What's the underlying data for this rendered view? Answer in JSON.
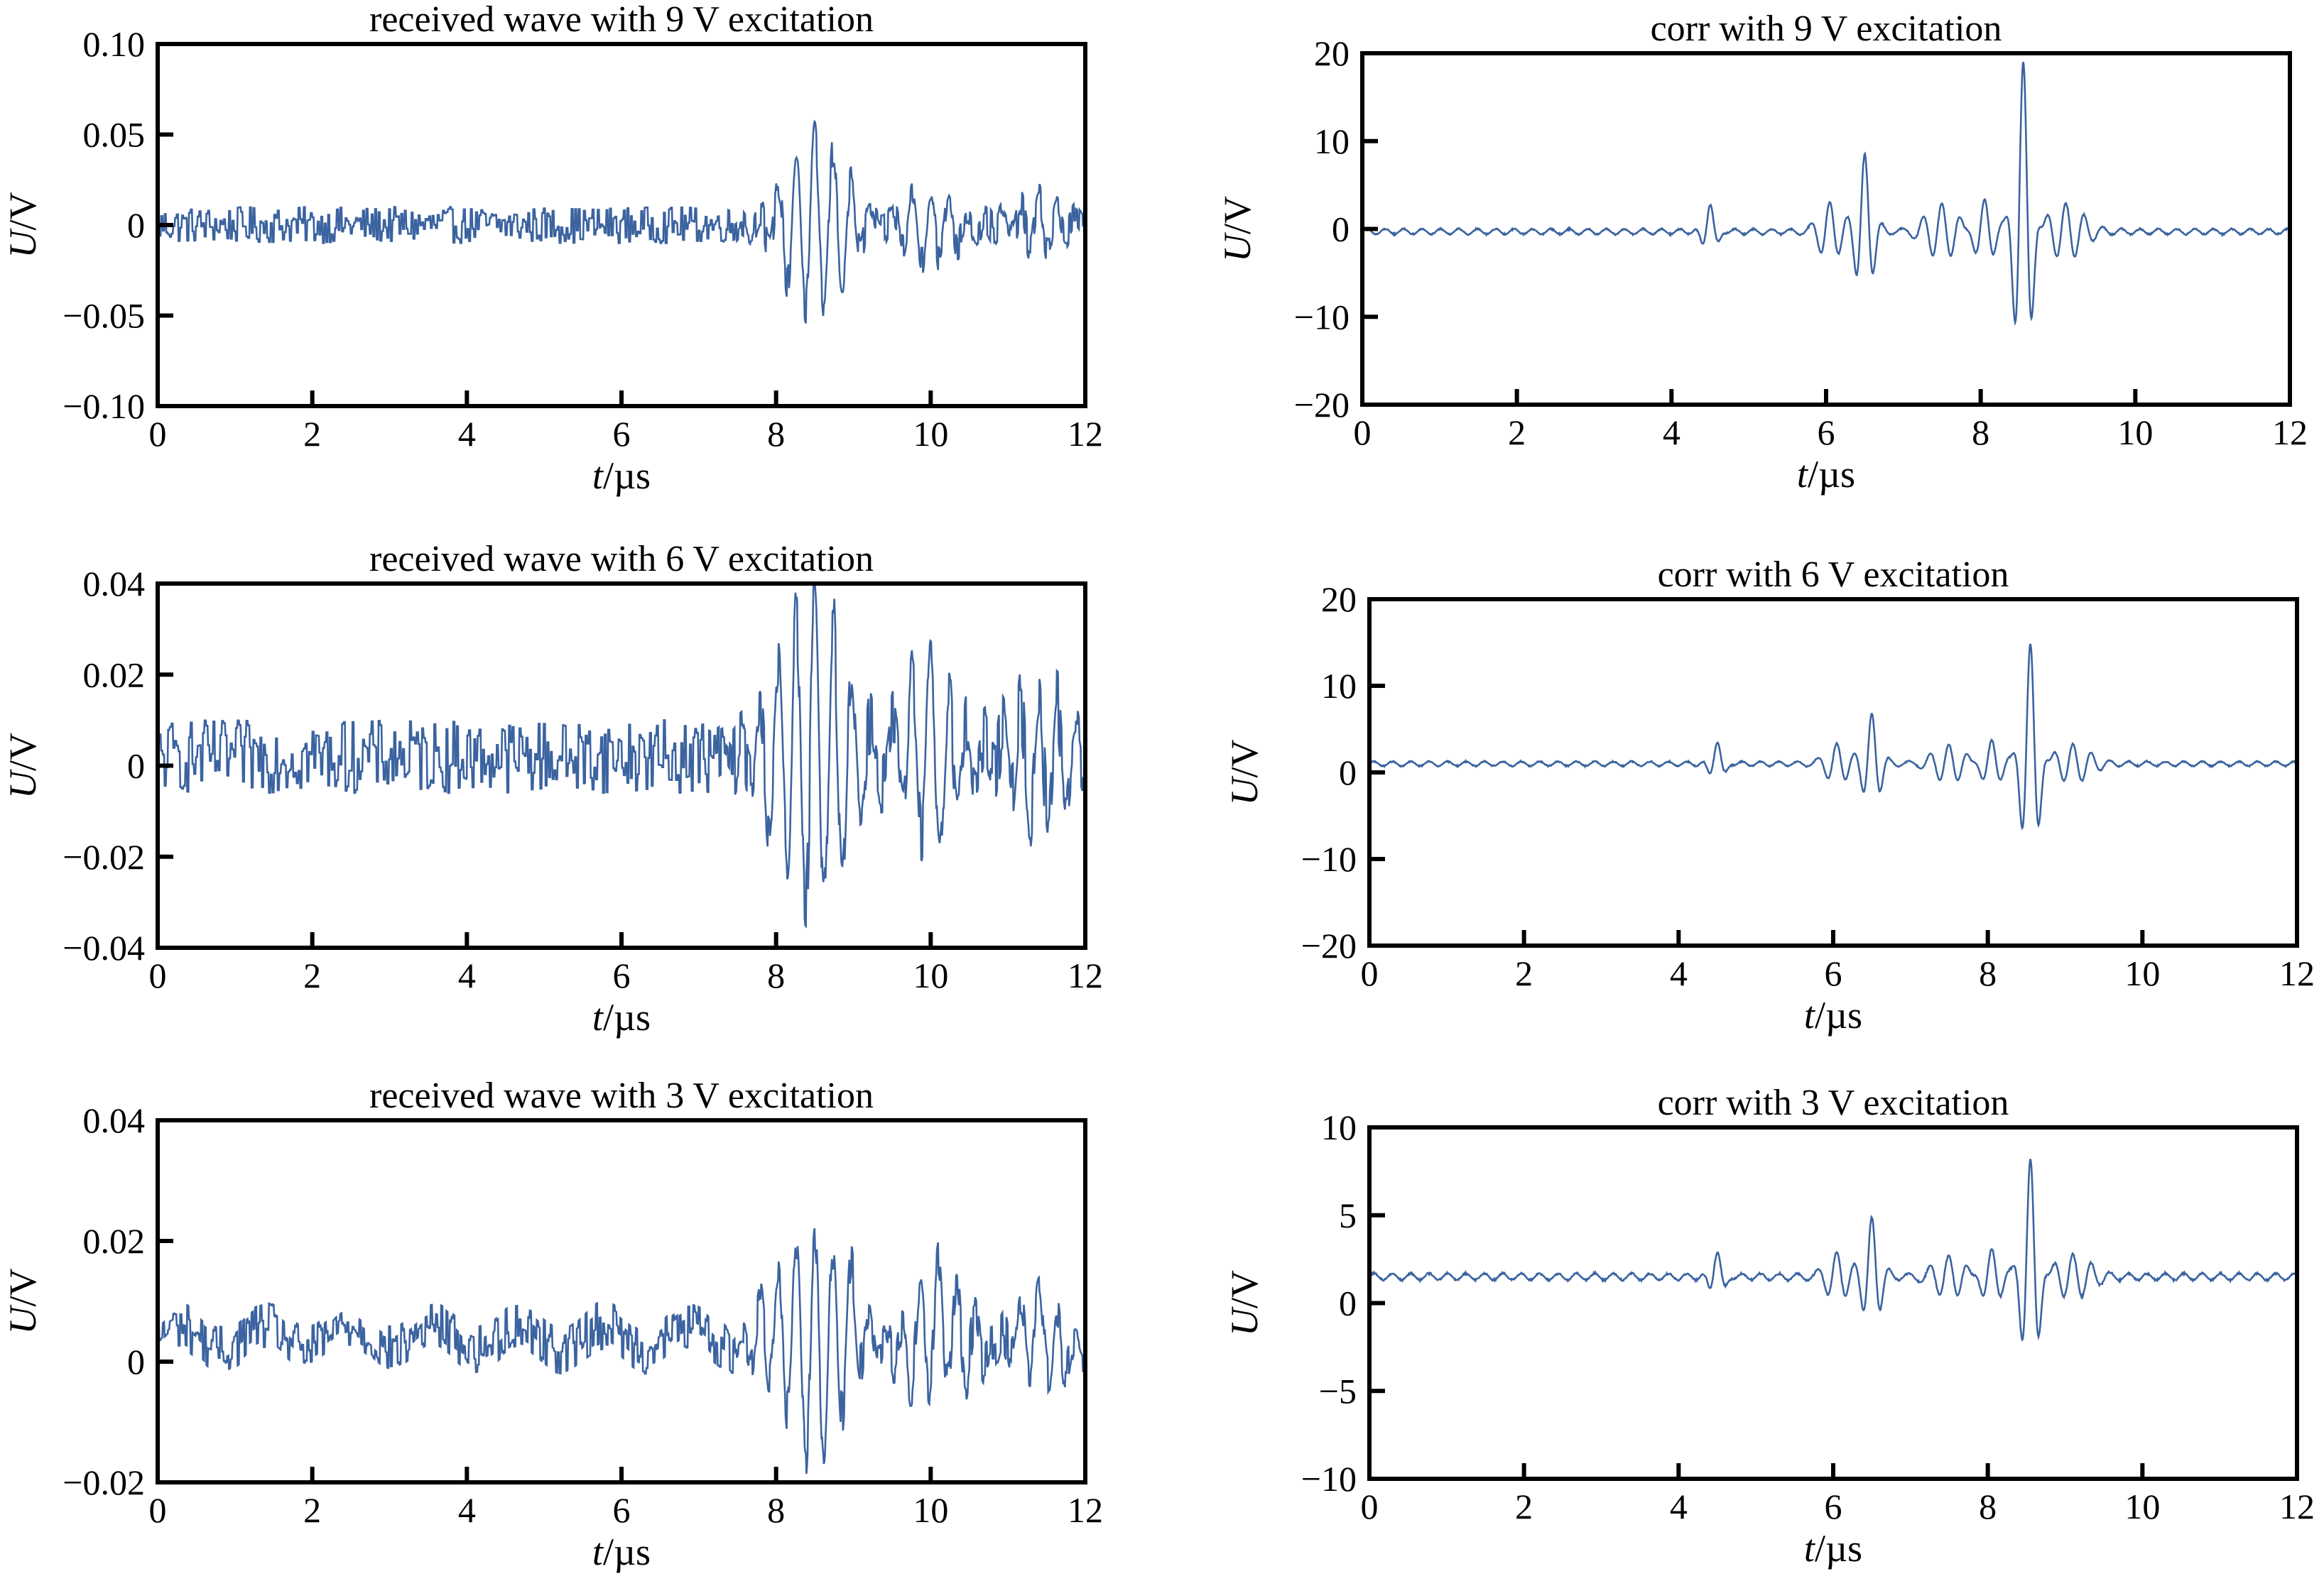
{
  "figure": {
    "line_color": "#3b63a0",
    "x_unit_label": {
      "italic": "t",
      "rest": "/µs"
    },
    "y_unit_label": {
      "italic": "U",
      "rest": "/V"
    }
  },
  "chart_data": [
    {
      "id": "rx9",
      "type": "line",
      "title": "received wave with 9 V excitation",
      "xlabel": "t/µs",
      "ylabel": "U/V",
      "xlim": [
        0,
        12
      ],
      "ylim": [
        -0.1,
        0.1
      ],
      "x_ticks": [
        "0",
        "2",
        "4",
        "6",
        "8",
        "10",
        "12"
      ],
      "y_ticks": [
        "−0.10",
        "−0.05",
        "0",
        "0.05",
        "0.10"
      ],
      "series": [
        {
          "signal": "received",
          "noise_amplitude": 0.01,
          "baseline": 0,
          "bursts": [
            {
              "t": 8.5,
              "amplitude": 0.048,
              "width": 0.55,
              "freq": 4.2
            },
            {
              "t": 10.0,
              "amplitude": 0.02,
              "width": 0.5,
              "freq": 4.2
            },
            {
              "t": 11.4,
              "amplitude": 0.013,
              "width": 0.4,
              "freq": 4.2
            }
          ]
        }
      ]
    },
    {
      "id": "corr9",
      "type": "line",
      "title": "corr with 9 V excitation",
      "xlabel": "t/µs",
      "ylabel": "U/V",
      "xlim": [
        0,
        12
      ],
      "ylim": [
        -20,
        20
      ],
      "x_ticks": [
        "0",
        "2",
        "4",
        "6",
        "8",
        "10",
        "12"
      ],
      "y_ticks": [
        "−20",
        "−10",
        "0",
        "10",
        "20"
      ],
      "series": [
        {
          "signal": "correlation",
          "noise_amplitude": 0.4,
          "baseline": -0.3,
          "bursts": [
            {
              "t": 4.5,
              "amplitude": 3.2,
              "width": 0.12,
              "freq": 4.2
            },
            {
              "t": 6.5,
              "amplitude": 8.5,
              "width": 0.14,
              "freq": 4.2
            },
            {
              "t": 6.05,
              "amplitude": 3.2,
              "width": 0.2,
              "freq": 4.2
            },
            {
              "t": 7.5,
              "amplitude": 3.2,
              "width": 0.3,
              "freq": 4.2
            },
            {
              "t": 8.55,
              "amplitude": 19.5,
              "width": 0.14,
              "freq": 4.2
            },
            {
              "t": 8.05,
              "amplitude": 4.0,
              "width": 0.2,
              "freq": 4.2
            },
            {
              "t": 9.1,
              "amplitude": 3.0,
              "width": 0.3,
              "freq": 4.2
            }
          ]
        }
      ]
    },
    {
      "id": "rx6",
      "type": "line",
      "title": "received wave with 6 V excitation",
      "xlabel": "t/µs",
      "ylabel": "U/V",
      "xlim": [
        0,
        12
      ],
      "ylim": [
        -0.04,
        0.04
      ],
      "x_ticks": [
        "0",
        "2",
        "4",
        "6",
        "8",
        "10",
        "12"
      ],
      "y_ticks": [
        "−0.04",
        "−0.02",
        "0",
        "0.02",
        "0.04"
      ],
      "series": [
        {
          "signal": "received",
          "noise_amplitude": 0.008,
          "baseline": 0.002,
          "bursts": [
            {
              "t": 8.5,
              "amplitude": 0.036,
              "width": 0.6,
              "freq": 4.2
            },
            {
              "t": 10.0,
              "amplitude": 0.02,
              "width": 0.5,
              "freq": 4.2
            },
            {
              "t": 11.4,
              "amplitude": 0.015,
              "width": 0.45,
              "freq": 4.2
            }
          ]
        }
      ]
    },
    {
      "id": "corr6",
      "type": "line",
      "title": "corr with 6 V excitation",
      "xlabel": "t/µs",
      "ylabel": "U/V",
      "xlim": [
        0,
        12
      ],
      "ylim": [
        -20,
        20
      ],
      "x_ticks": [
        "0",
        "2",
        "4",
        "6",
        "8",
        "10",
        "12"
      ],
      "y_ticks": [
        "−20",
        "−10",
        "0",
        "10",
        "20"
      ],
      "series": [
        {
          "signal": "correlation",
          "noise_amplitude": 0.35,
          "baseline": 1,
          "bursts": [
            {
              "t": 4.5,
              "amplitude": 2.6,
              "width": 0.12,
              "freq": 4.2
            },
            {
              "t": 6.5,
              "amplitude": 5.5,
              "width": 0.14,
              "freq": 4.2
            },
            {
              "t": 6.05,
              "amplitude": 2.2,
              "width": 0.2,
              "freq": 4.2
            },
            {
              "t": 7.5,
              "amplitude": 2.2,
              "width": 0.3,
              "freq": 4.2
            },
            {
              "t": 8.55,
              "amplitude": 14.0,
              "width": 0.14,
              "freq": 4.2
            },
            {
              "t": 8.05,
              "amplitude": 3.0,
              "width": 0.2,
              "freq": 4.2
            },
            {
              "t": 9.1,
              "amplitude": 2.0,
              "width": 0.3,
              "freq": 4.2
            }
          ]
        }
      ]
    },
    {
      "id": "rx3",
      "type": "line",
      "title": "received wave with 3 V excitation",
      "xlabel": "t/µs",
      "ylabel": "U/V",
      "xlim": [
        0,
        12
      ],
      "ylim": [
        -0.02,
        0.04
      ],
      "x_ticks": [
        "0",
        "2",
        "4",
        "6",
        "8",
        "10",
        "12"
      ],
      "y_ticks": [
        "−0.02",
        "0",
        "0.02",
        "0.04"
      ],
      "series": [
        {
          "signal": "received",
          "noise_amplitude": 0.004,
          "baseline": 0.004,
          "drift_amplitude": 0.002,
          "bursts": [
            {
              "t": 8.5,
              "amplitude": 0.019,
              "width": 0.6,
              "freq": 4.2
            },
            {
              "t": 10.1,
              "amplitude": 0.011,
              "width": 0.5,
              "freq": 4.2
            },
            {
              "t": 11.4,
              "amplitude": 0.008,
              "width": 0.45,
              "freq": 4.2
            }
          ]
        }
      ]
    },
    {
      "id": "corr3",
      "type": "line",
      "title": "corr with 3 V excitation",
      "xlabel": "t/µs",
      "ylabel": "U/V",
      "xlim": [
        0,
        12
      ],
      "ylim": [
        -10,
        10
      ],
      "x_ticks": [
        "0",
        "2",
        "4",
        "6",
        "8",
        "10",
        "12"
      ],
      "y_ticks": [
        "−10",
        "−5",
        "0",
        "5",
        "10"
      ],
      "series": [
        {
          "signal": "correlation",
          "noise_amplitude": 0.25,
          "baseline": 1.5,
          "bursts": [
            {
              "t": 4.5,
              "amplitude": 1.5,
              "width": 0.12,
              "freq": 4.2
            },
            {
              "t": 6.5,
              "amplitude": 3.2,
              "width": 0.14,
              "freq": 4.2
            },
            {
              "t": 6.05,
              "amplitude": 1.3,
              "width": 0.2,
              "freq": 4.2
            },
            {
              "t": 7.5,
              "amplitude": 1.2,
              "width": 0.3,
              "freq": 4.2
            },
            {
              "t": 8.55,
              "amplitude": 6.8,
              "width": 0.14,
              "freq": 4.2
            },
            {
              "t": 8.05,
              "amplitude": 1.8,
              "width": 0.2,
              "freq": 4.2
            },
            {
              "t": 9.1,
              "amplitude": 1.1,
              "width": 0.3,
              "freq": 4.2
            }
          ]
        }
      ]
    }
  ]
}
